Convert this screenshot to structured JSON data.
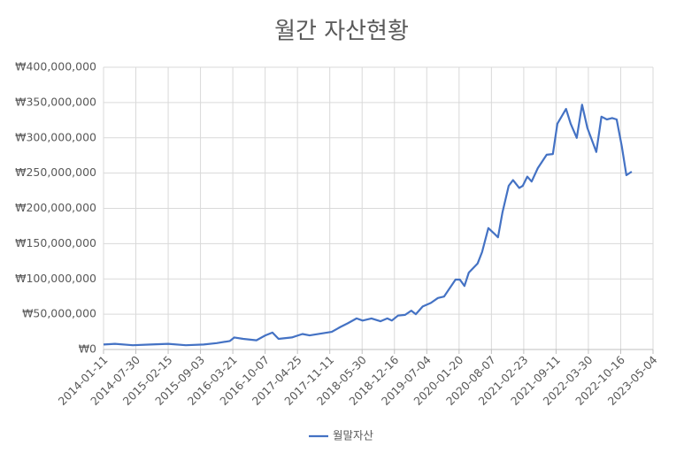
{
  "chart_data": {
    "type": "line",
    "title": "월간 자산현황",
    "x": [
      "2014-01-11",
      "2014-03-23",
      "2014-07-11",
      "2014-10-28",
      "2015-02-15",
      "2015-06-04",
      "2015-09-22",
      "2015-12-12",
      "2016-03-03",
      "2016-03-30",
      "2016-05-24",
      "2016-08-14",
      "2016-10-08",
      "2016-11-21",
      "2016-12-29",
      "2017-03-21",
      "2017-05-26",
      "2017-07-09",
      "2017-11-23",
      "2018-01-16",
      "2018-03-01",
      "2018-04-26",
      "2018-06-02",
      "2018-07-27",
      "2018-09-20",
      "2018-11-02",
      "2018-11-30",
      "2019-01-07",
      "2019-02-20",
      "2019-03-30",
      "2019-04-27",
      "2019-06-09",
      "2019-07-29",
      "2019-09-11",
      "2019-10-19",
      "2019-12-29",
      "2020-01-25",
      "2020-02-22",
      "2020-03-20",
      "2020-05-14",
      "2020-06-10",
      "2020-07-19",
      "2020-08-21",
      "2020-09-17",
      "2020-10-14",
      "2020-11-22",
      "2020-12-19",
      "2021-01-26",
      "2021-02-17",
      "2021-03-17",
      "2021-04-13",
      "2021-05-21",
      "2021-07-15",
      "2021-08-22",
      "2021-09-19",
      "2021-11-12",
      "2021-12-10",
      "2022-01-17",
      "2022-02-19",
      "2022-03-24",
      "2022-05-18",
      "2022-06-19",
      "2022-07-22",
      "2022-08-24",
      "2022-09-21",
      "2022-10-23",
      "2022-11-20",
      "2022-12-23"
    ],
    "series": [
      {
        "name": "월말자산",
        "color": "#4472c4",
        "values": [
          7000000,
          8000000,
          6000000,
          7000000,
          8000000,
          6000000,
          7000000,
          9000000,
          12000000,
          17000000,
          15000000,
          13000000,
          20000000,
          24000000,
          15000000,
          17000000,
          22000000,
          20000000,
          25000000,
          32000000,
          37000000,
          44000000,
          41000000,
          44000000,
          40000000,
          44000000,
          41000000,
          48000000,
          49000000,
          55000000,
          50000000,
          61000000,
          66000000,
          73000000,
          75000000,
          99000000,
          99000000,
          90000000,
          109000000,
          122000000,
          138000000,
          172000000,
          165000000,
          159000000,
          194000000,
          232000000,
          240000000,
          229000000,
          232000000,
          245000000,
          238000000,
          257000000,
          276000000,
          277000000,
          320000000,
          341000000,
          320000000,
          300000000,
          347000000,
          314000000,
          280000000,
          330000000,
          326000000,
          328000000,
          326000000,
          288000000,
          247000000,
          252000000
        ]
      }
    ],
    "xlim": [
      "2014-01-11",
      "2023-05-04"
    ],
    "xticks": [
      "2014-01-11",
      "2014-07-30",
      "2015-02-15",
      "2015-09-03",
      "2016-03-21",
      "2016-10-07",
      "2017-04-25",
      "2017-11-11",
      "2018-05-30",
      "2018-12-16",
      "2019-07-04",
      "2020-01-20",
      "2020-08-07",
      "2021-02-23",
      "2021-09-11",
      "2022-03-30",
      "2022-10-16",
      "2023-05-04"
    ],
    "ylim": [
      0,
      400000000
    ],
    "yticks": [
      {
        "value": 0,
        "label": "₩0"
      },
      {
        "value": 50000000,
        "label": "₩50,000,000"
      },
      {
        "value": 100000000,
        "label": "₩100,000,000"
      },
      {
        "value": 150000000,
        "label": "₩150,000,000"
      },
      {
        "value": 200000000,
        "label": "₩200,000,000"
      },
      {
        "value": 250000000,
        "label": "₩250,000,000"
      },
      {
        "value": 300000000,
        "label": "₩300,000,000"
      },
      {
        "value": 350000000,
        "label": "₩350,000,000"
      },
      {
        "value": 400000000,
        "label": "₩400,000,000"
      }
    ],
    "grid": true,
    "legend": "bottom"
  }
}
